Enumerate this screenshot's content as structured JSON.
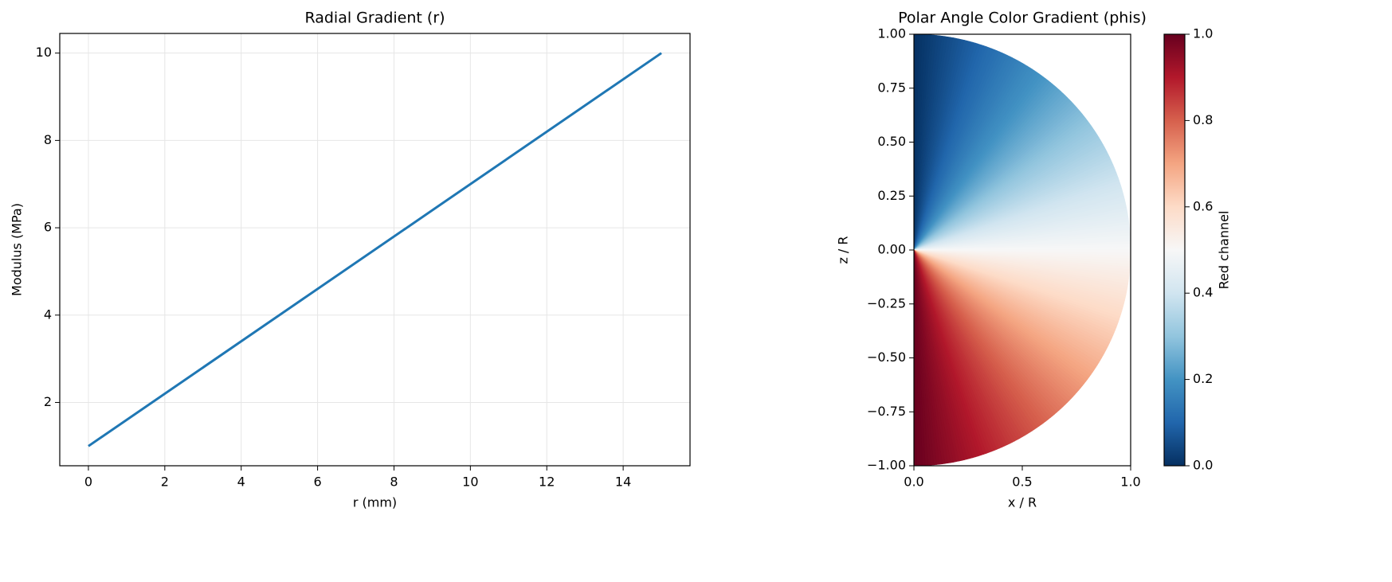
{
  "chart_data": [
    {
      "type": "line",
      "title": "Radial Gradient (r)",
      "xlabel": "r (mm)",
      "ylabel": "Modulus (MPa)",
      "x": [
        0,
        15
      ],
      "series": [
        {
          "values": [
            1,
            10
          ],
          "color": "#1f77b4"
        }
      ],
      "xlim": [
        -0.75,
        15.75
      ],
      "ylim": [
        0.55,
        10.45
      ],
      "xticks": [
        0,
        2,
        4,
        6,
        8,
        10,
        12,
        14
      ],
      "yticks": [
        2,
        4,
        6,
        8,
        10
      ],
      "grid": true
    },
    {
      "type": "polar",
      "title": "Polar Angle Color Gradient (phis)",
      "xlabel": "x / R",
      "ylabel": "z / R",
      "xlim": [
        0,
        1
      ],
      "ylim": [
        -1,
        1
      ],
      "xticks": [
        {
          "value": 0,
          "label": "0.0"
        },
        {
          "value": 0.5,
          "label": "0.5"
        },
        {
          "value": 1,
          "label": "1.0"
        }
      ],
      "yticks": [
        {
          "value": -1,
          "label": "−1.00"
        },
        {
          "value": -0.75,
          "label": "−0.75"
        },
        {
          "value": -0.5,
          "label": "−0.50"
        },
        {
          "value": -0.25,
          "label": "−0.25"
        },
        {
          "value": 0,
          "label": "0.00"
        },
        {
          "value": 0.25,
          "label": "0.25"
        },
        {
          "value": 0.5,
          "label": "0.50"
        },
        {
          "value": 0.75,
          "label": "0.75"
        },
        {
          "value": 1,
          "label": "1.00"
        }
      ],
      "colorbar": {
        "label": "Red channel",
        "lim": [
          0,
          1
        ],
        "ticks": [
          {
            "value": 0,
            "label": "0.0"
          },
          {
            "value": 0.2,
            "label": "0.2"
          },
          {
            "value": 0.4,
            "label": "0.4"
          },
          {
            "value": 0.6,
            "label": "0.6"
          },
          {
            "value": 0.8,
            "label": "0.8"
          },
          {
            "value": 1,
            "label": "1.0"
          }
        ],
        "colors": [
          "#053061",
          "#2166ac",
          "#4393c3",
          "#92c5de",
          "#d1e5f0",
          "#f7f7f7",
          "#fddbc7",
          "#f4a582",
          "#d6604d",
          "#b2182b",
          "#67001f"
        ]
      }
    }
  ]
}
